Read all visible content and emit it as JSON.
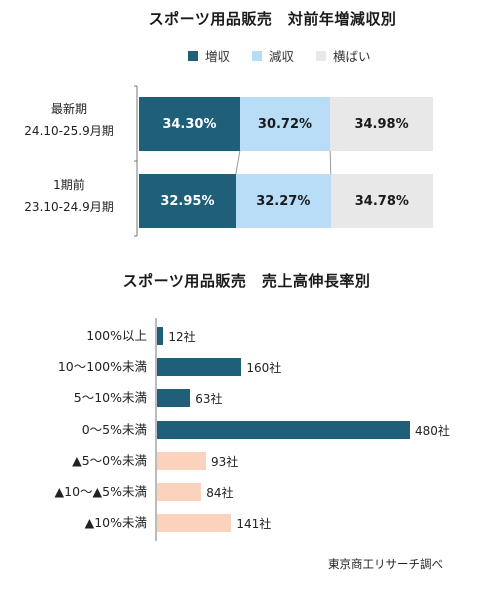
{
  "chart_data": [
    {
      "type": "bar",
      "stacked": true,
      "orientation": "horizontal",
      "title": "スポーツ用品販売　対前年増減収別",
      "categories": [
        [
          "最新期",
          "24.10-25.9月期"
        ],
        [
          "1期前",
          "23.10-24.9月期"
        ]
      ],
      "series": [
        {
          "name": "増収",
          "color": "#1f5f7a",
          "text_color": "#ffffff",
          "values": [
            34.3,
            32.95
          ],
          "labels": [
            "34.30%",
            "32.95%"
          ]
        },
        {
          "name": "減収",
          "color": "#b9dcf7",
          "text_color": "#1a1a1a",
          "values": [
            30.72,
            32.27
          ],
          "labels": [
            "30.72%",
            "32.27%"
          ]
        },
        {
          "name": "横ばい",
          "color": "#e8e8e8",
          "text_color": "#1a1a1a",
          "values": [
            34.98,
            34.78
          ],
          "labels": [
            "34.98%",
            "34.78%"
          ]
        }
      ],
      "xlim": [
        0,
        100
      ],
      "legend": "top"
    },
    {
      "type": "bar",
      "orientation": "horizontal",
      "title": "スポーツ用品販売　売上高伸長率別",
      "categories": [
        "100%以上",
        "10～100%未満",
        "5～10%未満",
        "0～5%未満",
        "▲5～0%未満",
        "▲10～▲5%未満",
        "▲10%未満"
      ],
      "values": [
        12,
        160,
        63,
        480,
        93,
        84,
        141
      ],
      "labels": [
        "12社",
        "160社",
        "63社",
        "480社",
        "93社",
        "84社",
        "141社"
      ],
      "colors": [
        "#1f5f7a",
        "#1f5f7a",
        "#1f5f7a",
        "#1f5f7a",
        "#fbd3bd",
        "#fbd3bd",
        "#fbd3bd"
      ],
      "unit": "社"
    }
  ],
  "source": "東京商工リサーチ調べ"
}
